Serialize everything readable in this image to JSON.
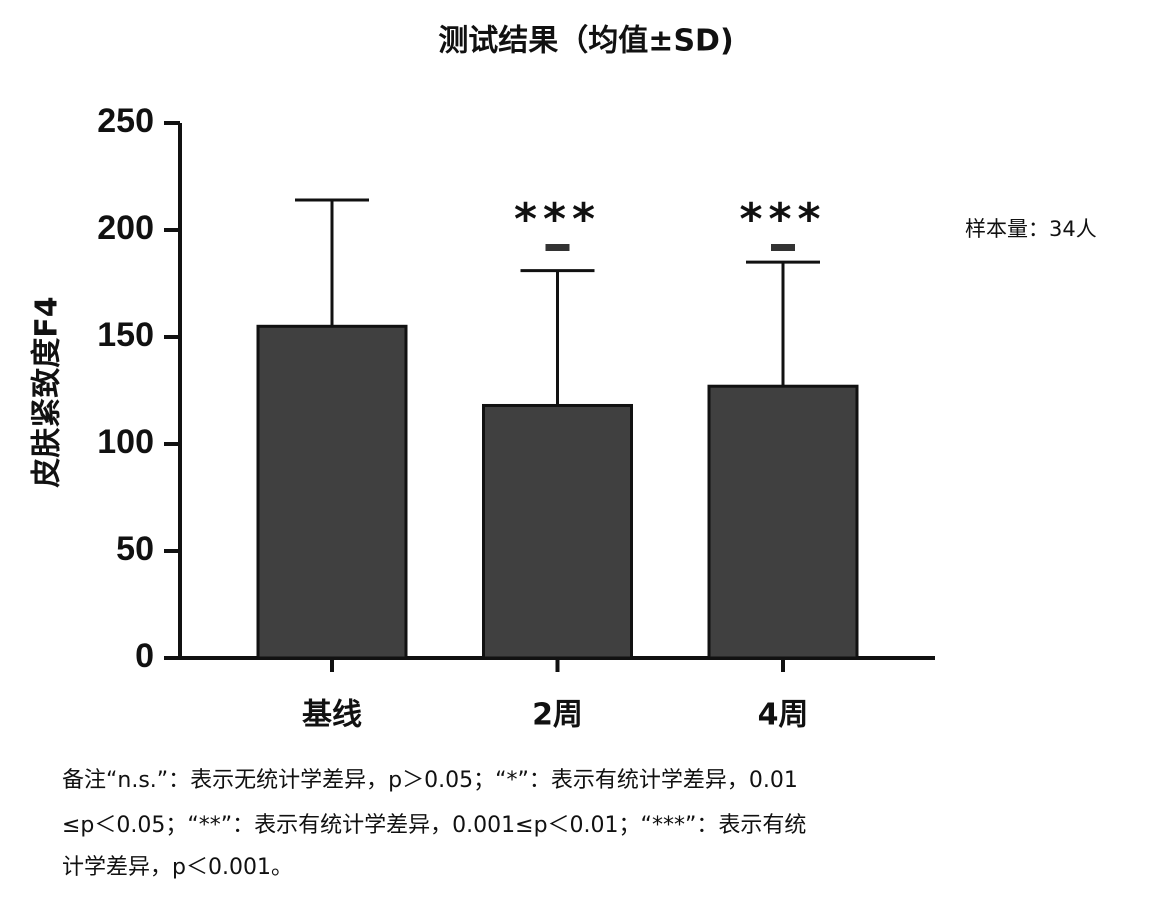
{
  "chart_data": {
    "type": "bar",
    "title": "测试结果（均值±SD)",
    "y_label": "皮肤紧致度F4",
    "categories": [
      "基线",
      "2周",
      "4周"
    ],
    "values": [
      155,
      118,
      127
    ],
    "errors": [
      59,
      63,
      58
    ],
    "color": "#404040",
    "ylim": [
      0,
      250
    ],
    "yticks": [
      0,
      50,
      100,
      150,
      200,
      250
    ],
    "annotations": [
      {
        "category": "2周",
        "text": "***"
      },
      {
        "category": "4周",
        "text": "***"
      }
    ],
    "sample_note": "样本量：34人",
    "footnote": [
      "备注“n.s.”：表示无统计学差异，p＞0.05；“*”：表示有统计学差异，0.01",
      "≤p＜0.05；“**”：表示有统计学差异，0.001≤p＜0.01；“***”：表示有统",
      "计学差异，p＜0.001。"
    ]
  }
}
